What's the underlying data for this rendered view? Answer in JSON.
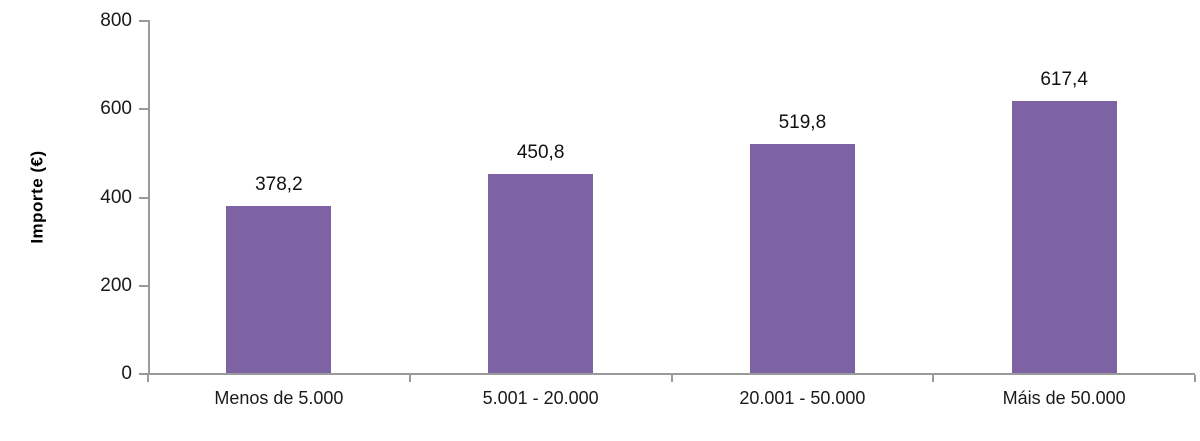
{
  "chart_data": {
    "type": "bar",
    "title": "",
    "xlabel": "",
    "ylabel": "Importe (€)",
    "categories": [
      "Menos de 5.000",
      "5.001 - 20.000",
      "20.001 - 50.000",
      "Máis de 50.000"
    ],
    "values": [
      378.2,
      450.8,
      519.8,
      617.4
    ],
    "value_labels": [
      "378,2",
      "450,8",
      "519,8",
      "617,4"
    ],
    "ylim": [
      0,
      800
    ],
    "yticks": [
      0,
      200,
      400,
      600,
      800
    ],
    "grid": false,
    "legend": false,
    "bar_color": "#7d62a4",
    "axis_color": "#9a9a9a",
    "text_color": "#1a1a1a"
  }
}
